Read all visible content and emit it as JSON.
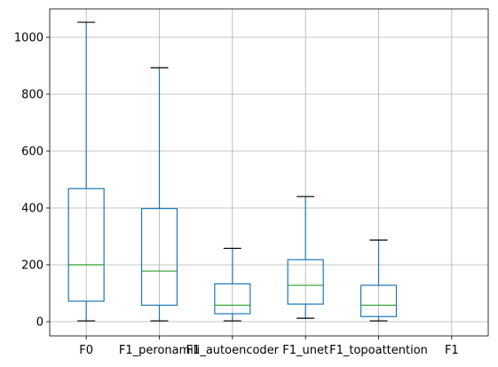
{
  "chart_data": {
    "type": "boxplot",
    "categories": [
      "F0",
      "F1_peronamili",
      "F1_autoencoder",
      "F1_unet",
      "F1_topoattention",
      "F1"
    ],
    "boxes": [
      {
        "category": "F0",
        "whisker_low": 3,
        "q1": 72,
        "median": 200,
        "q3": 468,
        "whisker_high": 1053
      },
      {
        "category": "F1_peronamili",
        "whisker_low": 3,
        "q1": 58,
        "median": 178,
        "q3": 398,
        "whisker_high": 893
      },
      {
        "category": "F1_autoencoder",
        "whisker_low": 3,
        "q1": 28,
        "median": 58,
        "q3": 133,
        "whisker_high": 258
      },
      {
        "category": "F1_unet",
        "whisker_low": 12,
        "q1": 62,
        "median": 128,
        "q3": 218,
        "whisker_high": 440
      },
      {
        "category": "F1_topoattention",
        "whisker_low": 3,
        "q1": 18,
        "median": 58,
        "q3": 128,
        "whisker_high": 287
      },
      {
        "category": "F1",
        "whisker_low": null,
        "q1": null,
        "median": null,
        "q3": null,
        "whisker_high": null
      }
    ],
    "y_ticks": [
      0,
      200,
      400,
      600,
      800,
      1000
    ],
    "ylim": [
      -50,
      1100
    ],
    "grid": true,
    "title": "",
    "xlabel": "",
    "ylabel": "",
    "colors": {
      "box": "#1f77b4",
      "median": "#2ca02c",
      "whisker_cap": "#000000",
      "grid": "#b0b0b0",
      "axes": "#000000"
    }
  }
}
